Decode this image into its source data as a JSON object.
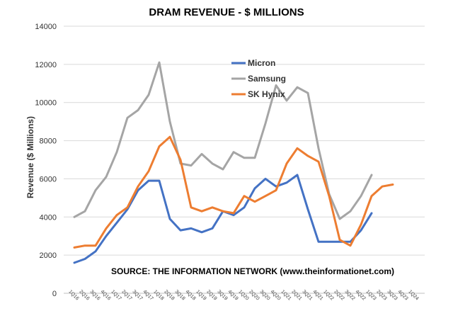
{
  "chart_data": {
    "type": "line",
    "title": "DRAM REVENUE - $ MILLIONS",
    "xlabel": "",
    "ylabel": "Revenue ($ Millions)",
    "ylim": [
      0,
      14000
    ],
    "yticks": [
      0,
      2000,
      4000,
      6000,
      8000,
      10000,
      12000,
      14000
    ],
    "grid": true,
    "legend": "top-center",
    "annotation": "SOURCE: THE INFORMATION NETWORK (www.theinformationet.com)",
    "categories": [
      "1Q16",
      "2Q16",
      "3Q16",
      "4Q16",
      "1Q17",
      "2Q17",
      "3Q17",
      "4Q17",
      "1Q18",
      "2Q18",
      "3Q18",
      "4Q18",
      "1Q19",
      "2Q19",
      "3Q19",
      "4Q19",
      "1Q20",
      "2Q20",
      "3Q20",
      "4Q20",
      "1Q21",
      "2Q21",
      "3Q21",
      "4Q21",
      "1Q22",
      "2Q22",
      "3Q22",
      "4Q22",
      "1Q23",
      "2Q23",
      "3Q23",
      "4Q23",
      "1Q24"
    ],
    "series": [
      {
        "name": "Micron",
        "color": "#4472C4",
        "values": [
          1600,
          1800,
          2200,
          3000,
          3700,
          4400,
          5400,
          5900,
          5900,
          3900,
          3300,
          3400,
          3200,
          3400,
          4300,
          4100,
          4500,
          5500,
          6000,
          5600,
          5800,
          6200,
          4400,
          2700,
          2700,
          2700,
          2700,
          3300,
          4200,
          null,
          null,
          null,
          null
        ]
      },
      {
        "name": "Samsung",
        "color": "#A5A5A5",
        "values": [
          4000,
          4300,
          5400,
          6100,
          7400,
          9200,
          9600,
          10400,
          12100,
          9000,
          6800,
          6700,
          7300,
          6800,
          6500,
          7400,
          7100,
          7100,
          8900,
          10900,
          10100,
          10800,
          10500,
          7600,
          5200,
          3900,
          4300,
          5100,
          6200,
          null,
          null,
          null,
          null
        ]
      },
      {
        "name": "SK Hynix",
        "color": "#ED7D31",
        "values": [
          2400,
          2500,
          2500,
          3400,
          4100,
          4500,
          5600,
          6400,
          7700,
          8200,
          7000,
          4500,
          4300,
          4500,
          4300,
          4200,
          5100,
          4800,
          5100,
          5400,
          6800,
          7600,
          7200,
          6900,
          5100,
          2800,
          2500,
          3600,
          5100,
          5600,
          5700,
          null,
          null
        ]
      }
    ]
  }
}
